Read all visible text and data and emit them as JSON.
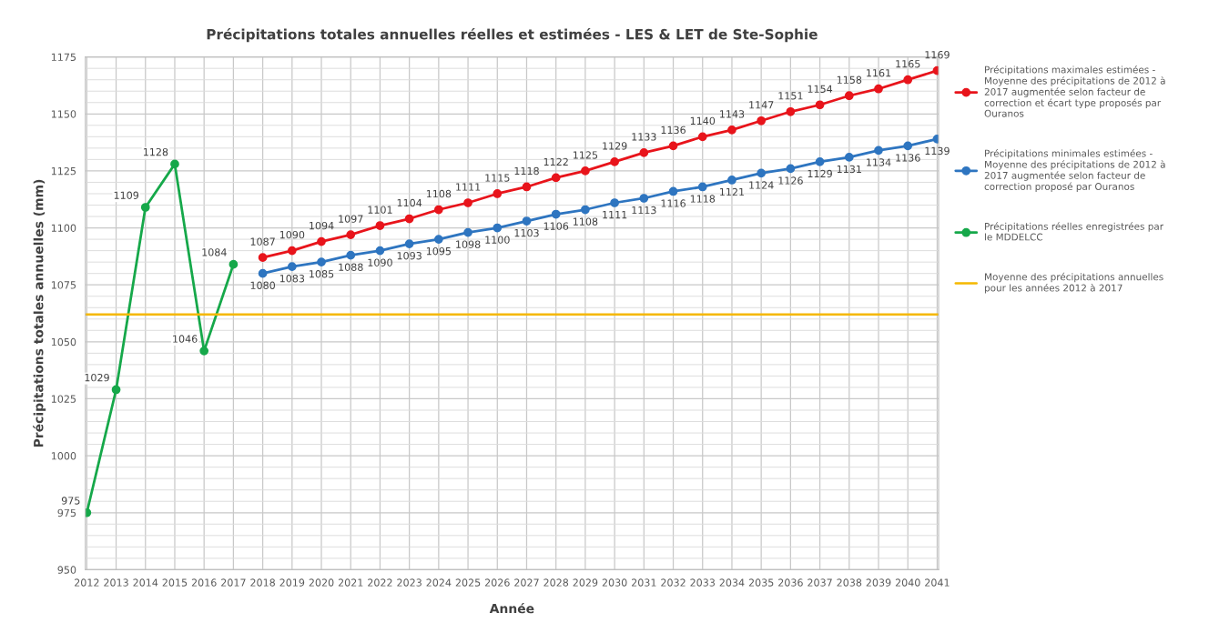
{
  "chart_data": {
    "type": "line",
    "title": "Précipitations totales annuelles réelles et estimées - LES & LET de Ste-Sophie",
    "xlabel": "Année",
    "ylabel": "Précipitations totales annuelles (mm)",
    "categories": [
      "2012",
      "2013",
      "2014",
      "2015",
      "2016",
      "2017",
      "2018",
      "2019",
      "2020",
      "2021",
      "2022",
      "2023",
      "2024",
      "2025",
      "2026",
      "2027",
      "2028",
      "2029",
      "2030",
      "2031",
      "2032",
      "2033",
      "2034",
      "2035",
      "2036",
      "2037",
      "2038",
      "2039",
      "2040",
      "2041"
    ],
    "series": [
      {
        "name": "Précipitations maximales estimées - Moyenne des précipitations de 2012 à 2017 augmentée selon facteur de correction et écart type proposés par Ouranos",
        "color": "#e8141b",
        "values": [
          null,
          null,
          null,
          null,
          null,
          null,
          1087,
          1090,
          1094,
          1097,
          1101,
          1104,
          1108,
          1111,
          1115,
          1118,
          1122,
          1125,
          1129,
          1133,
          1136,
          1140,
          1143,
          1147,
          1151,
          1154,
          1158,
          1161,
          1165,
          1169
        ]
      },
      {
        "name": "Précipitations minimales estimées - Moyenne des précipitations de 2012 à 2017 augmentée selon facteur de correction proposé par Ouranos",
        "color": "#2e75c0",
        "values": [
          null,
          null,
          null,
          null,
          null,
          null,
          1080,
          1083,
          1085,
          1088,
          1090,
          1093,
          1095,
          1098,
          1100,
          1103,
          1106,
          1108,
          1111,
          1113,
          1116,
          1118,
          1121,
          1124,
          1126,
          1129,
          1131,
          1134,
          1136,
          1139
        ]
      },
      {
        "name": "Précipitations réelles enregistrées par le MDDELCC",
        "color": "#16a84a",
        "values": [
          975,
          1029,
          1109,
          1128,
          1046,
          1084,
          null,
          null,
          null,
          null,
          null,
          null,
          null,
          null,
          null,
          null,
          null,
          null,
          null,
          null,
          null,
          null,
          null,
          null,
          null,
          null,
          null,
          null,
          null,
          null
        ]
      }
    ],
    "ref_lines": [
      {
        "axis": "y",
        "value": 1062,
        "label": "Moyenne des précipitations annuelles pour les années 2012 à 2017",
        "color": "#f5b800"
      }
    ],
    "ylim": [
      950,
      1175
    ],
    "yticks": [
      950,
      975,
      1000,
      1025,
      1050,
      1075,
      1100,
      1125,
      1150,
      1175
    ],
    "data_labels": true,
    "grid": true,
    "legend": "right",
    "marker": "circle",
    "line_style": "solid"
  }
}
